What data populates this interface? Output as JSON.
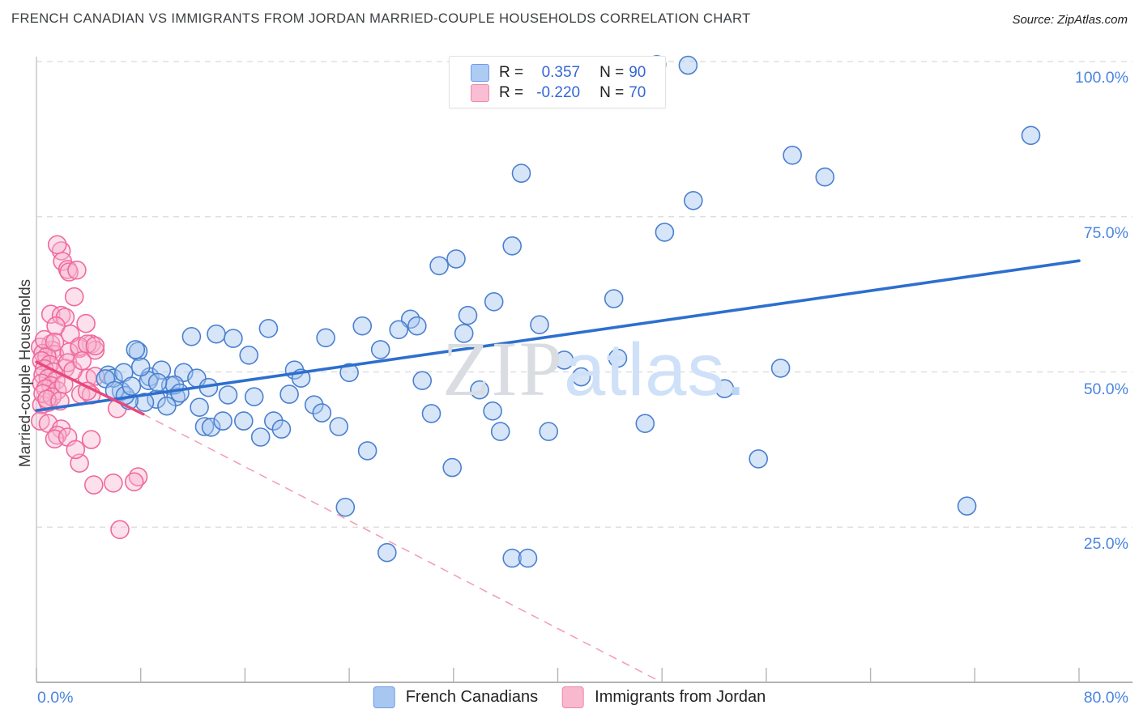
{
  "header": {
    "title": "FRENCH CANADIAN VS IMMIGRANTS FROM JORDAN MARRIED-COUPLE HOUSEHOLDS CORRELATION CHART",
    "source": "Source: ZipAtlas.com"
  },
  "legend": {
    "rows": [
      {
        "r_label": "R =",
        "r_value": "0.357",
        "n_label": "N =",
        "n_value": "90",
        "swatch_color": "#aecbf4",
        "swatch_border": "#6d9ce8"
      },
      {
        "r_label": "R =",
        "r_value": "-0.220",
        "n_label": "N =",
        "n_value": "70",
        "swatch_color": "#f9bed4",
        "swatch_border": "#ef87ad"
      }
    ]
  },
  "watermark": {
    "part1": "ZIP",
    "part2": "atlas",
    "dot": "."
  },
  "axes": {
    "y_label": "Married-couple Households",
    "y_ticks": [
      {
        "value": 100,
        "label": "100.0%"
      },
      {
        "value": 75,
        "label": "75.0%"
      },
      {
        "value": 50,
        "label": "50.0%"
      },
      {
        "value": 25,
        "label": "25.0%"
      }
    ],
    "x_left_label": "0.0%",
    "x_right_label": "80.0%"
  },
  "bottom_legend": {
    "items": [
      {
        "label": "French Canadians",
        "swatch_color": "#a8c7f0",
        "swatch_border": "#6d9ce8"
      },
      {
        "label": "Immigrants from Jordan",
        "swatch_color": "#f8b8ce",
        "swatch_border": "#ef87ad"
      }
    ]
  },
  "chart_data": {
    "type": "scatter",
    "title": "French Canadian vs Immigrants from Jordan Married-Couple Households",
    "xlabel": "",
    "ylabel": "Married-couple Households",
    "xlim": [
      0,
      80
    ],
    "ylim": [
      0,
      100
    ],
    "x_unit": "%",
    "y_unit": "%",
    "grid": "dashed horizontal at 25/50/75/100",
    "legend_position": "top-center and bottom-center",
    "y_gridlines": [
      25,
      50,
      75,
      100
    ],
    "x_tick_values": [
      0,
      8,
      16,
      24,
      32,
      40,
      48,
      56,
      64,
      72,
      80
    ],
    "series": [
      {
        "name": "French Canadians",
        "r": 0.357,
        "n": 90,
        "point_fill": "#a7c5ef",
        "point_fill_opacity": 0.45,
        "point_stroke": "#4a80d0",
        "points": [
          [
            7.8,
            53.3
          ],
          [
            8.7,
            49.2
          ],
          [
            9.6,
            50.3
          ],
          [
            11.3,
            49.9
          ],
          [
            12.3,
            49.0
          ],
          [
            10.3,
            47.8
          ],
          [
            9.2,
            45.6
          ],
          [
            8.3,
            45.1
          ],
          [
            7.1,
            45.4
          ],
          [
            6.5,
            46.9
          ],
          [
            10.7,
            46.0
          ],
          [
            11.9,
            55.7
          ],
          [
            13.8,
            56.1
          ],
          [
            15.1,
            55.4
          ],
          [
            17.8,
            57.0
          ],
          [
            16.3,
            52.7
          ],
          [
            22.2,
            55.5
          ],
          [
            25.0,
            57.4
          ],
          [
            19.8,
            50.3
          ],
          [
            20.3,
            49.0
          ],
          [
            24.0,
            49.9
          ],
          [
            14.7,
            46.3
          ],
          [
            16.7,
            46.0
          ],
          [
            19.4,
            46.4
          ],
          [
            21.3,
            44.7
          ],
          [
            21.9,
            43.4
          ],
          [
            12.9,
            41.2
          ],
          [
            13.4,
            41.1
          ],
          [
            14.3,
            42.1
          ],
          [
            15.9,
            42.1
          ],
          [
            18.2,
            42.1
          ],
          [
            18.8,
            40.8
          ],
          [
            17.2,
            39.5
          ],
          [
            23.2,
            41.2
          ],
          [
            25.4,
            37.3
          ],
          [
            23.7,
            28.2
          ],
          [
            26.9,
            20.9
          ],
          [
            36.5,
            20.0
          ],
          [
            37.7,
            20.0
          ],
          [
            30.9,
            67.1
          ],
          [
            35.1,
            61.3
          ],
          [
            33.1,
            59.1
          ],
          [
            28.7,
            58.5
          ],
          [
            27.8,
            56.8
          ],
          [
            29.2,
            57.4
          ],
          [
            32.8,
            56.2
          ],
          [
            38.6,
            57.6
          ],
          [
            44.3,
            61.8
          ],
          [
            26.4,
            53.6
          ],
          [
            40.5,
            51.9
          ],
          [
            41.8,
            49.2
          ],
          [
            44.6,
            52.2
          ],
          [
            29.6,
            48.6
          ],
          [
            34.0,
            47.1
          ],
          [
            30.3,
            43.3
          ],
          [
            35.0,
            43.7
          ],
          [
            35.6,
            40.4
          ],
          [
            39.3,
            40.4
          ],
          [
            46.7,
            41.7
          ],
          [
            31.9,
            34.6
          ],
          [
            57.1,
            50.6
          ],
          [
            52.8,
            47.3
          ],
          [
            55.4,
            36.0
          ],
          [
            37.2,
            82.0
          ],
          [
            36.5,
            70.3
          ],
          [
            32.2,
            68.2
          ],
          [
            47.6,
            99.5
          ],
          [
            50.0,
            99.4
          ],
          [
            58.0,
            84.9
          ],
          [
            60.5,
            81.4
          ],
          [
            50.4,
            77.6
          ],
          [
            48.2,
            72.5
          ],
          [
            76.3,
            88.1
          ],
          [
            71.4,
            28.4
          ],
          [
            5.5,
            49.5
          ],
          [
            5.9,
            49.0
          ],
          [
            6.7,
            49.9
          ],
          [
            8.6,
            48.6
          ],
          [
            10.6,
            47.9
          ],
          [
            5.3,
            48.9
          ],
          [
            7.6,
            53.6
          ],
          [
            6.0,
            47.0
          ],
          [
            6.8,
            46.2
          ],
          [
            7.3,
            47.7
          ],
          [
            8.0,
            50.8
          ],
          [
            9.3,
            48.3
          ],
          [
            10.0,
            44.5
          ],
          [
            11.0,
            46.6
          ],
          [
            12.5,
            44.3
          ],
          [
            13.2,
            47.5
          ]
        ]
      },
      {
        "name": "Immigrants from Jordan",
        "r": -0.22,
        "n": 70,
        "point_fill": "#f7b6cf",
        "point_fill_opacity": 0.42,
        "point_stroke": "#ef6a9b",
        "points": [
          [
            1.9,
            69.5
          ],
          [
            2.0,
            67.8
          ],
          [
            2.4,
            66.5
          ],
          [
            2.5,
            66.1
          ],
          [
            3.1,
            66.4
          ],
          [
            2.9,
            62.1
          ],
          [
            1.1,
            59.3
          ],
          [
            1.9,
            59.1
          ],
          [
            2.2,
            58.8
          ],
          [
            1.5,
            57.4
          ],
          [
            3.8,
            57.8
          ],
          [
            2.6,
            56.1
          ],
          [
            4.2,
            54.5
          ],
          [
            1.1,
            54.5
          ],
          [
            1.2,
            53.5
          ],
          [
            4.5,
            53.5
          ],
          [
            3.3,
            53.8
          ],
          [
            1.4,
            52.8
          ],
          [
            2.5,
            53.2
          ],
          [
            3.3,
            54.1
          ],
          [
            3.9,
            54.5
          ],
          [
            4.5,
            54.2
          ],
          [
            2.2,
            50.6
          ],
          [
            3.9,
            49.0
          ],
          [
            4.5,
            49.3
          ],
          [
            3.4,
            46.4
          ],
          [
            4.2,
            46.3
          ],
          [
            0.4,
            44.7
          ],
          [
            0.9,
            45.1
          ],
          [
            0.3,
            42.1
          ],
          [
            0.9,
            41.7
          ],
          [
            1.9,
            40.8
          ],
          [
            1.6,
            39.8
          ],
          [
            6.2,
            44.1
          ],
          [
            3.9,
            46.9
          ],
          [
            0.3,
            54.0
          ],
          [
            0.5,
            53.0
          ],
          [
            0.8,
            52.5
          ],
          [
            0.4,
            51.8
          ],
          [
            1.0,
            51.2
          ],
          [
            0.6,
            50.5
          ],
          [
            1.3,
            50.0
          ],
          [
            0.5,
            49.5
          ],
          [
            0.9,
            49.0
          ],
          [
            1.5,
            48.6
          ],
          [
            0.4,
            48.2
          ],
          [
            1.1,
            47.8
          ],
          [
            0.7,
            47.3
          ],
          [
            1.6,
            47.0
          ],
          [
            0.5,
            46.5
          ],
          [
            1.2,
            46.0
          ],
          [
            0.8,
            45.6
          ],
          [
            1.8,
            45.3
          ],
          [
            2.1,
            48.0
          ],
          [
            2.4,
            51.5
          ],
          [
            1.4,
            39.2
          ],
          [
            2.4,
            39.5
          ],
          [
            3.3,
            35.3
          ],
          [
            4.4,
            31.8
          ],
          [
            7.8,
            33.1
          ],
          [
            6.4,
            24.6
          ],
          [
            5.9,
            32.1
          ],
          [
            7.5,
            32.3
          ],
          [
            1.6,
            70.5
          ],
          [
            3.0,
            37.5
          ],
          [
            4.2,
            39.1
          ],
          [
            0.6,
            55.2
          ],
          [
            1.4,
            54.8
          ],
          [
            2.8,
            50.2
          ],
          [
            3.5,
            51.8
          ]
        ]
      }
    ],
    "trend_lines": [
      {
        "series": "French Canadians",
        "style": "solid",
        "color": "#2d6fce",
        "width": 3.6,
        "x1": 0,
        "y1": 43.8,
        "x2": 80,
        "y2": 67.9
      },
      {
        "series": "Immigrants from Jordan",
        "style": "solid",
        "color": "#e8487c",
        "width": 3.4,
        "x1": 0,
        "y1": 51.6,
        "x2": 8.2,
        "y2": 43.2
      },
      {
        "series": "Immigrants from Jordan",
        "style": "dashed",
        "color": "#f4a0b5",
        "width": 1.6,
        "x1": 8.2,
        "y1": 43.2,
        "x2": 47.8,
        "y2": 0.2
      }
    ]
  }
}
